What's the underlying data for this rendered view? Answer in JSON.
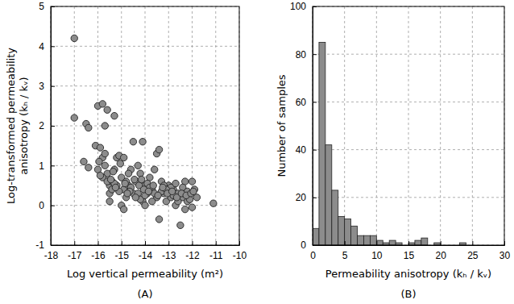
{
  "chart_data": [
    {
      "type": "scatter",
      "title": "(A)",
      "x_label": "Log vertical permeability (m²)",
      "y_label": [
        "Log-transformed permeability",
        "anisotropy (kₕ / kᵥ)"
      ],
      "x": [
        -17,
        -17,
        -16.5,
        -16.4,
        -16,
        -15.8,
        -15.6,
        -15.7,
        -15.3,
        -14.5,
        -14.1,
        -13.5,
        -13.4,
        -16.6,
        -16.4,
        -16.1,
        -15.9,
        -15.8,
        -15.7,
        -15.6,
        -15.5,
        -15.5,
        -15.4,
        -15.3,
        -15.2,
        -15.1,
        -15.0,
        -14.9,
        -14.9,
        -14.8,
        -14.7,
        -14.6,
        -14.5,
        -14.4,
        -14.3,
        -14.2,
        -14.1,
        -14.0,
        -14.0,
        -13.9,
        -13.8,
        -13.7,
        -13.6,
        -13.5,
        -13.4,
        -13.3,
        -13.2,
        -13.1,
        -13.0,
        -12.9,
        -12.8,
        -12.7,
        -12.6,
        -12.5,
        -12.4,
        -12.3,
        -12.2,
        -12.1,
        -12.0,
        -11.9,
        -11.8,
        -11.1,
        -15.5,
        -15.0,
        -14.9,
        -15.4,
        -15.2,
        -15.1,
        -14.8,
        -14.6,
        -14.3,
        -14.2,
        -13.9,
        -13.6,
        -13.3,
        -12.9,
        -12.6,
        -12.3,
        -12.1,
        -15.8,
        -15.6,
        -15.3,
        -14.7,
        -14.4,
        -13.7,
        -13.2,
        -12.8,
        -12.4,
        -16.0,
        -15.9,
        -14.0,
        -13.8,
        -13.1,
        -12.7,
        -12.2,
        -12.0,
        -15.7,
        -15.45,
        -15.25,
        -15.05,
        -14.85,
        -14.65,
        -14.45,
        -14.25,
        -14.05,
        -13.85,
        -13.65,
        -13.45,
        -13.25,
        -13.05,
        -12.85,
        -12.65,
        -12.45,
        -12.25,
        -12.05,
        -11.95,
        -15.95,
        -15.35,
        -14.75,
        -14.15
      ],
      "y": [
        4.2,
        2.2,
        2.05,
        1.95,
        2.5,
        2.55,
        2.4,
        2.0,
        2.25,
        1.6,
        1.6,
        1.3,
        1.4,
        1.1,
        0.95,
        1.5,
        1.45,
        1.2,
        1.0,
        0.8,
        0.5,
        0.3,
        0.6,
        0.9,
        1.2,
        1.25,
        0.7,
        1.2,
        0.4,
        0.2,
        0.5,
        0.9,
        0.3,
        0.6,
        1.0,
        0.8,
        0.1,
        0.0,
        0.5,
        0.3,
        0.7,
        0.4,
        0.9,
        0.2,
        -0.35,
        0.6,
        0.3,
        0.1,
        0.5,
        0.2,
        0.4,
        0.0,
        0.3,
        -0.5,
        0.2,
        0.6,
        0.1,
        0.3,
        -0.05,
        0.4,
        0.2,
        0.05,
        0.1,
        0.0,
        -0.1,
        0.4,
        0.5,
        0.35,
        0.6,
        0.45,
        0.3,
        0.15,
        0.55,
        0.3,
        0.35,
        0.45,
        0.1,
        -0.1,
        0.15,
        0.7,
        0.6,
        0.55,
        0.8,
        0.2,
        0.1,
        0.5,
        0.25,
        0.45,
        0.9,
        0.75,
        0.25,
        0.45,
        0.4,
        0.55,
        0.35,
        0.6,
        1.3,
        0.65,
        0.45,
        1.05,
        0.55,
        0.35,
        0.65,
        0.5,
        0.4,
        0.35,
        0.5,
        0.25,
        0.45,
        0.3,
        0.35,
        0.2,
        0.3,
        0.25,
        0.3,
        0.35,
        1.1,
        0.85,
        0.3,
        0.65
      ],
      "xlim": [
        -18,
        -10
      ],
      "xticks": [
        -18,
        -17,
        -16,
        -15,
        -14,
        -13,
        -12,
        -11,
        -10
      ],
      "ylim": [
        -1,
        5
      ],
      "yticks": [
        -1,
        0,
        1,
        2,
        3,
        4,
        5
      ],
      "grid": true,
      "color": "#8c8c8c",
      "marker": "circle"
    },
    {
      "type": "histogram",
      "title": "(B)",
      "x_label": "Permeability anisotropy (kₕ / kᵥ)",
      "y_label": "Number of samples",
      "bins": [
        0,
        1,
        2,
        3,
        4,
        5,
        6,
        7,
        8,
        9,
        10,
        11,
        12,
        13,
        14,
        15,
        16,
        17,
        18,
        19,
        20,
        21,
        22,
        23,
        24,
        25,
        26,
        27,
        28,
        29,
        30
      ],
      "counts": [
        7,
        85,
        42,
        23,
        12,
        11,
        8,
        4,
        4,
        4,
        2,
        1,
        2,
        1,
        0,
        1,
        2,
        3,
        0,
        1,
        0,
        0,
        0,
        1,
        0,
        0,
        0,
        0,
        0,
        0
      ],
      "xlim": [
        0,
        30
      ],
      "xticks": [
        0,
        5,
        10,
        15,
        20,
        25,
        30
      ],
      "ylim": [
        0,
        100
      ],
      "yticks": [
        0,
        20,
        40,
        60,
        80,
        100
      ],
      "grid": true,
      "color": "#8c8c8c"
    }
  ]
}
